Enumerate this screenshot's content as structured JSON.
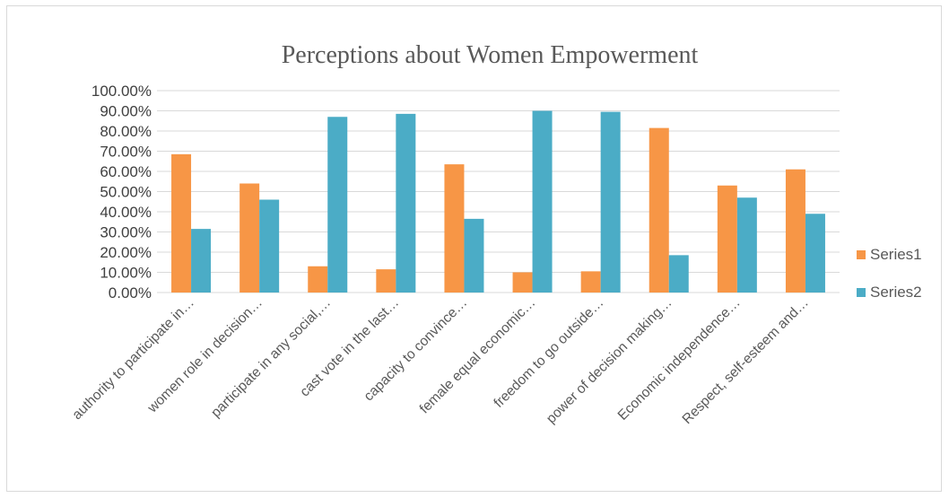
{
  "chart_data": {
    "type": "bar",
    "title": "Perceptions about Women Empowerment",
    "categories": [
      "authority to participate in…",
      "women role in decision…",
      "participate in any social,…",
      "cast vote in the last…",
      "capacity to convince…",
      "female equal economic…",
      "freedom to go outside…",
      "power of decision making…",
      "Economic independence…",
      "Respect, self-esteem and…"
    ],
    "series": [
      {
        "name": "Series1",
        "color": "#f79646",
        "values": [
          0.685,
          0.54,
          0.13,
          0.115,
          0.635,
          0.1,
          0.105,
          0.815,
          0.53,
          0.61
        ]
      },
      {
        "name": "Series2",
        "color": "#4bacc6",
        "values": [
          0.315,
          0.46,
          0.87,
          0.885,
          0.365,
          0.9,
          0.895,
          0.185,
          0.47,
          0.39
        ]
      }
    ],
    "yticks": [
      "0.00%",
      "10.00%",
      "20.00%",
      "30.00%",
      "40.00%",
      "50.00%",
      "60.00%",
      "70.00%",
      "80.00%",
      "90.00%",
      "100.00%"
    ],
    "ylim": [
      0,
      1
    ],
    "grid": true,
    "legend_position": "right"
  }
}
